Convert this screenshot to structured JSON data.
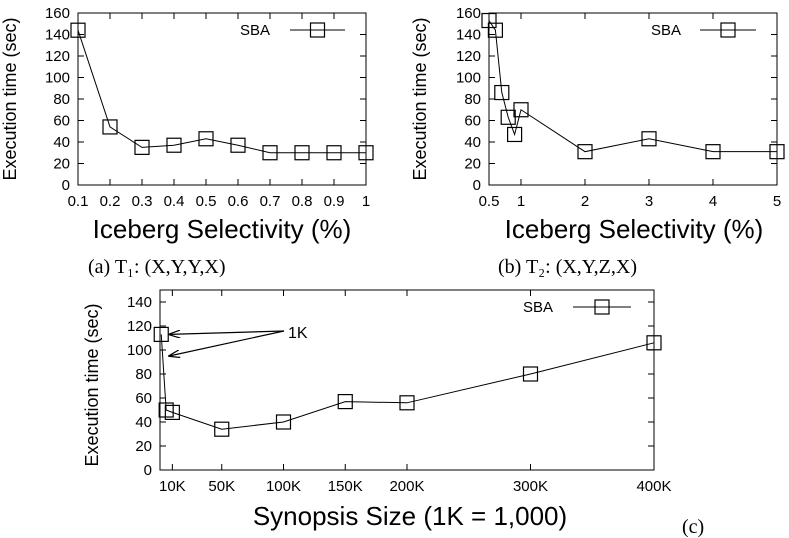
{
  "chart_data": [
    {
      "id": "a",
      "type": "line",
      "ylabel": "Execution time (sec)",
      "xlabel": "Iceberg Selectivity (%)",
      "caption": "(a) T₁: (X,Y,Y,X)",
      "xlim": [
        0.1,
        1
      ],
      "ylim": [
        0,
        160
      ],
      "xticks": [
        0.1,
        0.2,
        0.3,
        0.4,
        0.5,
        0.6,
        0.7,
        0.8,
        0.9,
        1
      ],
      "xtick_labels": [
        "0.1",
        "0.2",
        "0.3",
        "0.4",
        "0.5",
        "0.6",
        "0.7",
        "0.8",
        "0.9",
        "1"
      ],
      "yticks": [
        0,
        20,
        40,
        60,
        80,
        100,
        120,
        140,
        160
      ],
      "grid": false,
      "legend_position": "top-right",
      "series": [
        {
          "name": "SBA",
          "marker": "square",
          "x": [
            0.1,
            0.2,
            0.3,
            0.4,
            0.5,
            0.6,
            0.7,
            0.8,
            0.9,
            1
          ],
          "y": [
            144,
            54,
            35,
            37,
            43,
            37,
            30,
            30,
            30,
            30
          ]
        }
      ]
    },
    {
      "id": "b",
      "type": "line",
      "ylabel": "Execution time (sec)",
      "xlabel": "Iceberg Selectivity (%)",
      "caption": "(b) T₂: (X,Y,Z,X)",
      "xlim": [
        0.5,
        5
      ],
      "ylim": [
        0,
        160
      ],
      "xticks": [
        0.5,
        1,
        2,
        3,
        4,
        5
      ],
      "xtick_labels": [
        "0.5",
        "1",
        "2",
        "3",
        "4",
        "5"
      ],
      "yticks": [
        0,
        20,
        40,
        60,
        80,
        100,
        120,
        140,
        160
      ],
      "grid": false,
      "legend_position": "top-right",
      "series": [
        {
          "name": "SBA",
          "marker": "square",
          "x": [
            0.5,
            0.6,
            0.7,
            0.8,
            0.9,
            1,
            2,
            3,
            4,
            5
          ],
          "y": [
            153,
            144,
            86,
            63,
            47,
            70,
            31,
            43,
            31,
            31
          ]
        }
      ]
    },
    {
      "id": "c",
      "type": "line",
      "ylabel": "Execution time (sec)",
      "xlabel": "Synopsis Size (1K = 1,000)",
      "caption": "(c)",
      "xlim": [
        0,
        400
      ],
      "ylim": [
        0,
        150
      ],
      "xticks": [
        10,
        50,
        100,
        150,
        200,
        300,
        400
      ],
      "xtick_labels": [
        "10K",
        "50K",
        "100K",
        "150K",
        "200K",
        "300K",
        "400K"
      ],
      "yticks": [
        0,
        20,
        40,
        60,
        80,
        100,
        120,
        140
      ],
      "grid": false,
      "legend_position": "top-right",
      "annotation": {
        "text": "1K",
        "arrow_targets": [
          {
            "x": 5,
            "y": 113
          },
          {
            "x": 5,
            "y": 95
          }
        ]
      },
      "series": [
        {
          "name": "SBA",
          "marker": "square",
          "x": [
            1,
            5,
            10,
            50,
            100,
            150,
            200,
            300,
            400
          ],
          "y": [
            113,
            50,
            48,
            34,
            40,
            57,
            56,
            80,
            106
          ]
        }
      ]
    }
  ]
}
